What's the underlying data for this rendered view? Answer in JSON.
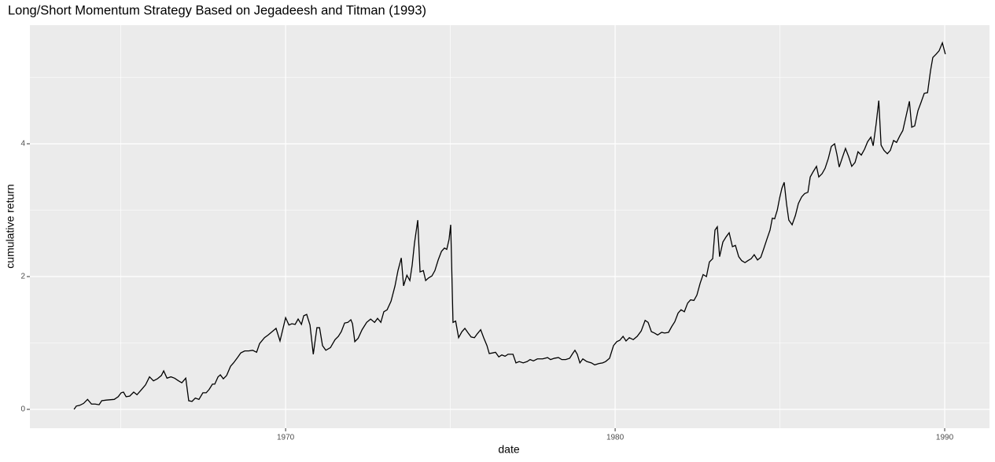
{
  "chart_data": {
    "type": "line",
    "title": "Long/Short Momentum Strategy Based on Jegadeesh and Titman (1993)",
    "xlabel": "date",
    "ylabel": "cumulative return",
    "x": [
      1963.58,
      1963.65,
      1963.75,
      1963.87,
      1963.99,
      1964.11,
      1964.22,
      1964.34,
      1964.42,
      1964.56,
      1964.8,
      1964.92,
      1965.01,
      1965.08,
      1965.16,
      1965.27,
      1965.39,
      1965.49,
      1965.63,
      1965.75,
      1965.87,
      1965.99,
      1966.11,
      1966.23,
      1966.3,
      1966.4,
      1966.52,
      1966.63,
      1966.75,
      1966.85,
      1966.97,
      1967.06,
      1967.16,
      1967.26,
      1967.37,
      1967.49,
      1967.59,
      1967.68,
      1967.78,
      1967.85,
      1967.95,
      1968.02,
      1968.11,
      1968.21,
      1968.33,
      1968.42,
      1968.54,
      1968.64,
      1968.76,
      1968.88,
      1969.0,
      1969.12,
      1969.21,
      1969.36,
      1969.47,
      1969.59,
      1969.71,
      1969.83,
      1970.0,
      1970.1,
      1970.19,
      1970.29,
      1970.38,
      1970.48,
      1970.55,
      1970.64,
      1970.74,
      1970.84,
      1970.95,
      1971.03,
      1971.12,
      1971.22,
      1971.36,
      1971.5,
      1971.6,
      1971.69,
      1971.79,
      1971.89,
      1971.98,
      1972.03,
      1972.1,
      1972.2,
      1972.32,
      1972.46,
      1972.58,
      1972.7,
      1972.79,
      1972.89,
      1972.98,
      1973.08,
      1973.2,
      1973.32,
      1973.41,
      1973.51,
      1973.58,
      1973.68,
      1973.77,
      1973.84,
      1973.91,
      1974.01,
      1974.08,
      1974.18,
      1974.25,
      1974.34,
      1974.44,
      1974.53,
      1974.63,
      1974.73,
      1974.82,
      1974.89,
      1974.96,
      1975.01,
      1975.08,
      1975.16,
      1975.25,
      1975.35,
      1975.44,
      1975.54,
      1975.63,
      1975.73,
      1975.82,
      1975.92,
      1976.01,
      1976.11,
      1976.18,
      1976.28,
      1976.37,
      1976.47,
      1976.56,
      1976.66,
      1976.75,
      1976.9,
      1976.99,
      1977.09,
      1977.21,
      1977.33,
      1977.42,
      1977.52,
      1977.64,
      1977.8,
      1977.95,
      1978.04,
      1978.16,
      1978.28,
      1978.38,
      1978.5,
      1978.62,
      1978.71,
      1978.78,
      1978.85,
      1978.93,
      1979.02,
      1979.14,
      1979.28,
      1979.38,
      1979.5,
      1979.62,
      1979.71,
      1979.83,
      1979.95,
      1980.05,
      1980.14,
      1980.24,
      1980.33,
      1980.43,
      1980.55,
      1980.67,
      1980.79,
      1980.91,
      1981.0,
      1981.1,
      1981.19,
      1981.29,
      1981.41,
      1981.5,
      1981.62,
      1981.72,
      1981.81,
      1981.91,
      1982.0,
      1982.1,
      1982.2,
      1982.29,
      1982.39,
      1982.48,
      1982.58,
      1982.67,
      1982.77,
      1982.86,
      1982.96,
      1983.03,
      1983.1,
      1983.17,
      1983.27,
      1983.37,
      1983.46,
      1983.56,
      1983.65,
      1983.75,
      1983.84,
      1983.94,
      1984.03,
      1984.13,
      1984.22,
      1984.32,
      1984.42,
      1984.51,
      1984.61,
      1984.7,
      1984.77,
      1984.84,
      1984.92,
      1984.99,
      1985.06,
      1985.13,
      1985.2,
      1985.27,
      1985.37,
      1985.47,
      1985.56,
      1985.66,
      1985.75,
      1985.85,
      1985.92,
      1986.01,
      1986.11,
      1986.18,
      1986.28,
      1986.37,
      1986.47,
      1986.56,
      1986.66,
      1986.73,
      1986.8,
      1986.9,
      1986.99,
      1987.09,
      1987.18,
      1987.28,
      1987.37,
      1987.47,
      1987.57,
      1987.66,
      1987.76,
      1987.83,
      1987.92,
      1988.0,
      1988.07,
      1988.16,
      1988.26,
      1988.35,
      1988.45,
      1988.54,
      1988.64,
      1988.73,
      1988.83,
      1988.93,
      1989.0,
      1989.09,
      1989.19,
      1989.28,
      1989.38,
      1989.48,
      1989.57,
      1989.64,
      1989.74,
      1989.83,
      1989.93,
      1990.02
    ],
    "values": [
      0.0,
      0.05,
      0.06,
      0.09,
      0.15,
      0.08,
      0.08,
      0.07,
      0.13,
      0.14,
      0.15,
      0.19,
      0.25,
      0.26,
      0.19,
      0.2,
      0.26,
      0.22,
      0.3,
      0.37,
      0.49,
      0.43,
      0.46,
      0.51,
      0.58,
      0.47,
      0.49,
      0.47,
      0.43,
      0.4,
      0.47,
      0.13,
      0.12,
      0.17,
      0.15,
      0.25,
      0.25,
      0.3,
      0.38,
      0.38,
      0.49,
      0.52,
      0.46,
      0.51,
      0.65,
      0.7,
      0.78,
      0.85,
      0.88,
      0.88,
      0.89,
      0.86,
      0.99,
      1.08,
      1.12,
      1.17,
      1.22,
      1.03,
      1.38,
      1.27,
      1.29,
      1.28,
      1.36,
      1.28,
      1.41,
      1.43,
      1.27,
      0.83,
      1.23,
      1.23,
      0.96,
      0.89,
      0.93,
      1.05,
      1.1,
      1.17,
      1.3,
      1.31,
      1.35,
      1.29,
      1.02,
      1.07,
      1.2,
      1.31,
      1.36,
      1.31,
      1.37,
      1.31,
      1.47,
      1.5,
      1.63,
      1.86,
      2.09,
      2.28,
      1.86,
      2.02,
      1.94,
      2.17,
      2.5,
      2.85,
      2.07,
      2.09,
      1.94,
      1.98,
      2.01,
      2.09,
      2.25,
      2.38,
      2.43,
      2.41,
      2.56,
      2.78,
      1.31,
      1.33,
      1.08,
      1.17,
      1.22,
      1.15,
      1.09,
      1.08,
      1.14,
      1.2,
      1.08,
      0.96,
      0.84,
      0.85,
      0.86,
      0.79,
      0.82,
      0.8,
      0.83,
      0.83,
      0.7,
      0.72,
      0.7,
      0.72,
      0.75,
      0.73,
      0.76,
      0.76,
      0.78,
      0.75,
      0.77,
      0.78,
      0.75,
      0.75,
      0.77,
      0.84,
      0.89,
      0.83,
      0.7,
      0.76,
      0.72,
      0.7,
      0.67,
      0.69,
      0.7,
      0.72,
      0.77,
      0.96,
      1.02,
      1.04,
      1.1,
      1.03,
      1.08,
      1.05,
      1.1,
      1.18,
      1.34,
      1.31,
      1.17,
      1.15,
      1.12,
      1.16,
      1.15,
      1.16,
      1.25,
      1.32,
      1.45,
      1.5,
      1.47,
      1.6,
      1.65,
      1.64,
      1.72,
      1.9,
      2.03,
      2.0,
      2.22,
      2.27,
      2.7,
      2.75,
      2.3,
      2.52,
      2.6,
      2.66,
      2.45,
      2.47,
      2.3,
      2.24,
      2.21,
      2.24,
      2.27,
      2.33,
      2.25,
      2.29,
      2.42,
      2.57,
      2.7,
      2.88,
      2.87,
      3.0,
      3.18,
      3.33,
      3.42,
      3.1,
      2.85,
      2.78,
      2.92,
      3.1,
      3.2,
      3.25,
      3.27,
      3.5,
      3.58,
      3.66,
      3.5,
      3.55,
      3.63,
      3.78,
      3.96,
      4.0,
      3.84,
      3.65,
      3.8,
      3.93,
      3.8,
      3.66,
      3.72,
      3.88,
      3.83,
      3.92,
      4.03,
      4.1,
      3.97,
      4.3,
      4.65,
      3.98,
      3.9,
      3.85,
      3.9,
      4.05,
      4.02,
      4.12,
      4.2,
      4.42,
      4.64,
      4.25,
      4.27,
      4.5,
      4.62,
      4.76,
      4.77,
      5.1,
      5.3,
      5.35,
      5.4,
      5.52,
      5.35
    ],
    "color": "#000000",
    "xlim": [
      1962.24,
      1991.36
    ],
    "ylim": [
      -0.284,
      5.787
    ],
    "xticks": [
      1970,
      1980,
      1990
    ],
    "yticks": [
      0,
      2,
      4
    ],
    "x_minor_ticks": [
      1965,
      1975,
      1985
    ],
    "y_minor_ticks": [
      1,
      3,
      5
    ],
    "grid": true
  }
}
